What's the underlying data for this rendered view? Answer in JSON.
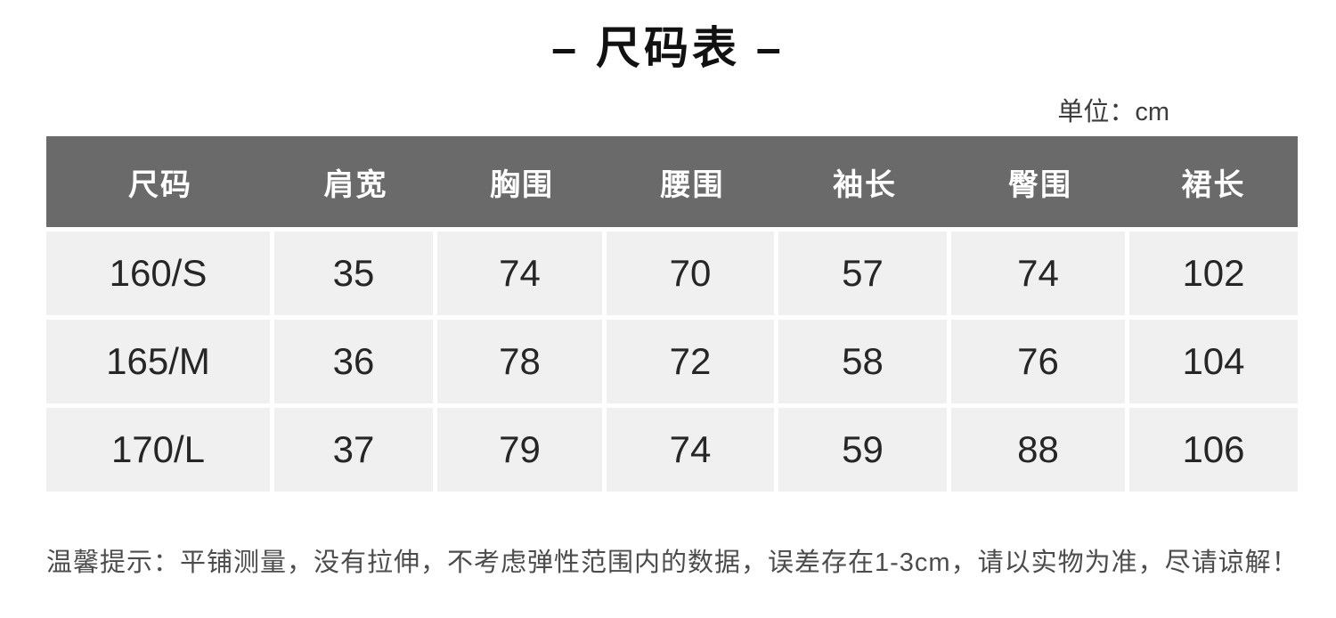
{
  "page": {
    "title": "– 尺码表 –",
    "unit_label": "单位：cm",
    "note": "温馨提示：平铺测量，没有拉伸，不考虑弹性范围内的数据，误差存在1-3cm，请以实物为准，尽请谅解！"
  },
  "table": {
    "headers": [
      "尺码",
      "肩宽",
      "胸围",
      "腰围",
      "袖长",
      "臀围",
      "裙长"
    ],
    "rows": [
      [
        "160/S",
        "35",
        "74",
        "70",
        "57",
        "74",
        "102"
      ],
      [
        "165/M",
        "36",
        "78",
        "72",
        "58",
        "76",
        "104"
      ],
      [
        "170/L",
        "37",
        "79",
        "74",
        "59",
        "88",
        "106"
      ]
    ]
  },
  "colors": {
    "header_bg": "#6a6a6a",
    "header_text": "#ffffff",
    "cell_bg": "#f0f0f1",
    "data_text": "#262626",
    "note_text": "#4c4c4c",
    "page_bg": "#ffffff"
  }
}
